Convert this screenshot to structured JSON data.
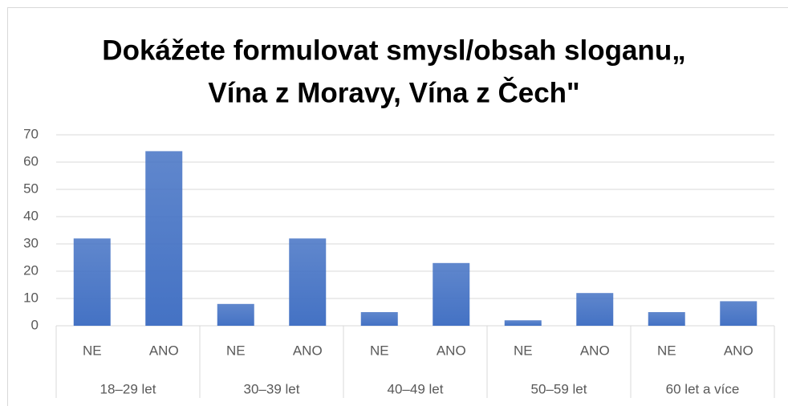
{
  "chart_data": {
    "type": "bar",
    "title": [
      "Dokážete formulovat smysl/obsah sloganu„",
      "Vína z Moravy, Vína z Čech\""
    ],
    "categories": [
      "NE",
      "ANO",
      "NE",
      "ANO",
      "NE",
      "ANO",
      "NE",
      "ANO",
      "NE",
      "ANO"
    ],
    "category_groups": [
      "18–29 let",
      "30–39 let",
      "40–49 let",
      "50–59 let",
      "60 let a více"
    ],
    "values": [
      32,
      64,
      8,
      32,
      5,
      23,
      2,
      12,
      5,
      9
    ],
    "color": "#4472c4",
    "ylim": [
      0,
      70
    ],
    "yticks": [
      0,
      10,
      20,
      30,
      40,
      50,
      60,
      70
    ],
    "grid": true
  }
}
